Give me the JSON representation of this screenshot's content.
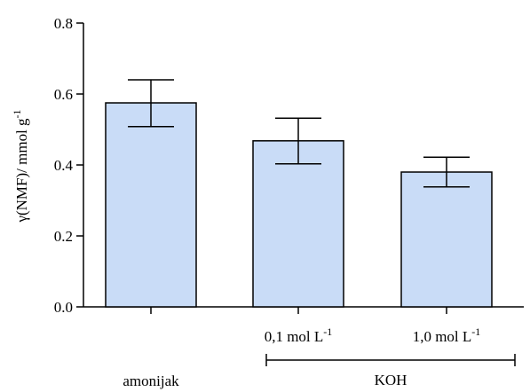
{
  "chart_data": {
    "type": "bar",
    "categories": [
      "amonijak",
      "0,1 mol L",
      "1,0 mol L"
    ],
    "category_superscripts": [
      "",
      "-1",
      "-1"
    ],
    "values": [
      0.575,
      0.468,
      0.38
    ],
    "error_upper": [
      0.64,
      0.532,
      0.422
    ],
    "error_lower": [
      0.508,
      0.403,
      0.338
    ],
    "ylabel": "γ(NMF)/ mmol g",
    "ylabel_superscript": "-1",
    "ylim": [
      0,
      0.8
    ],
    "yticks": [
      "0.0",
      "0.2",
      "0.4",
      "0.6",
      "0.8"
    ],
    "ytick_values": [
      0,
      0.2,
      0.4,
      0.6,
      0.8
    ],
    "group_label": "KOH",
    "grid": false,
    "legend": "none",
    "bar_color": "#c9dcf7",
    "bar_edge_color": "#000000"
  }
}
